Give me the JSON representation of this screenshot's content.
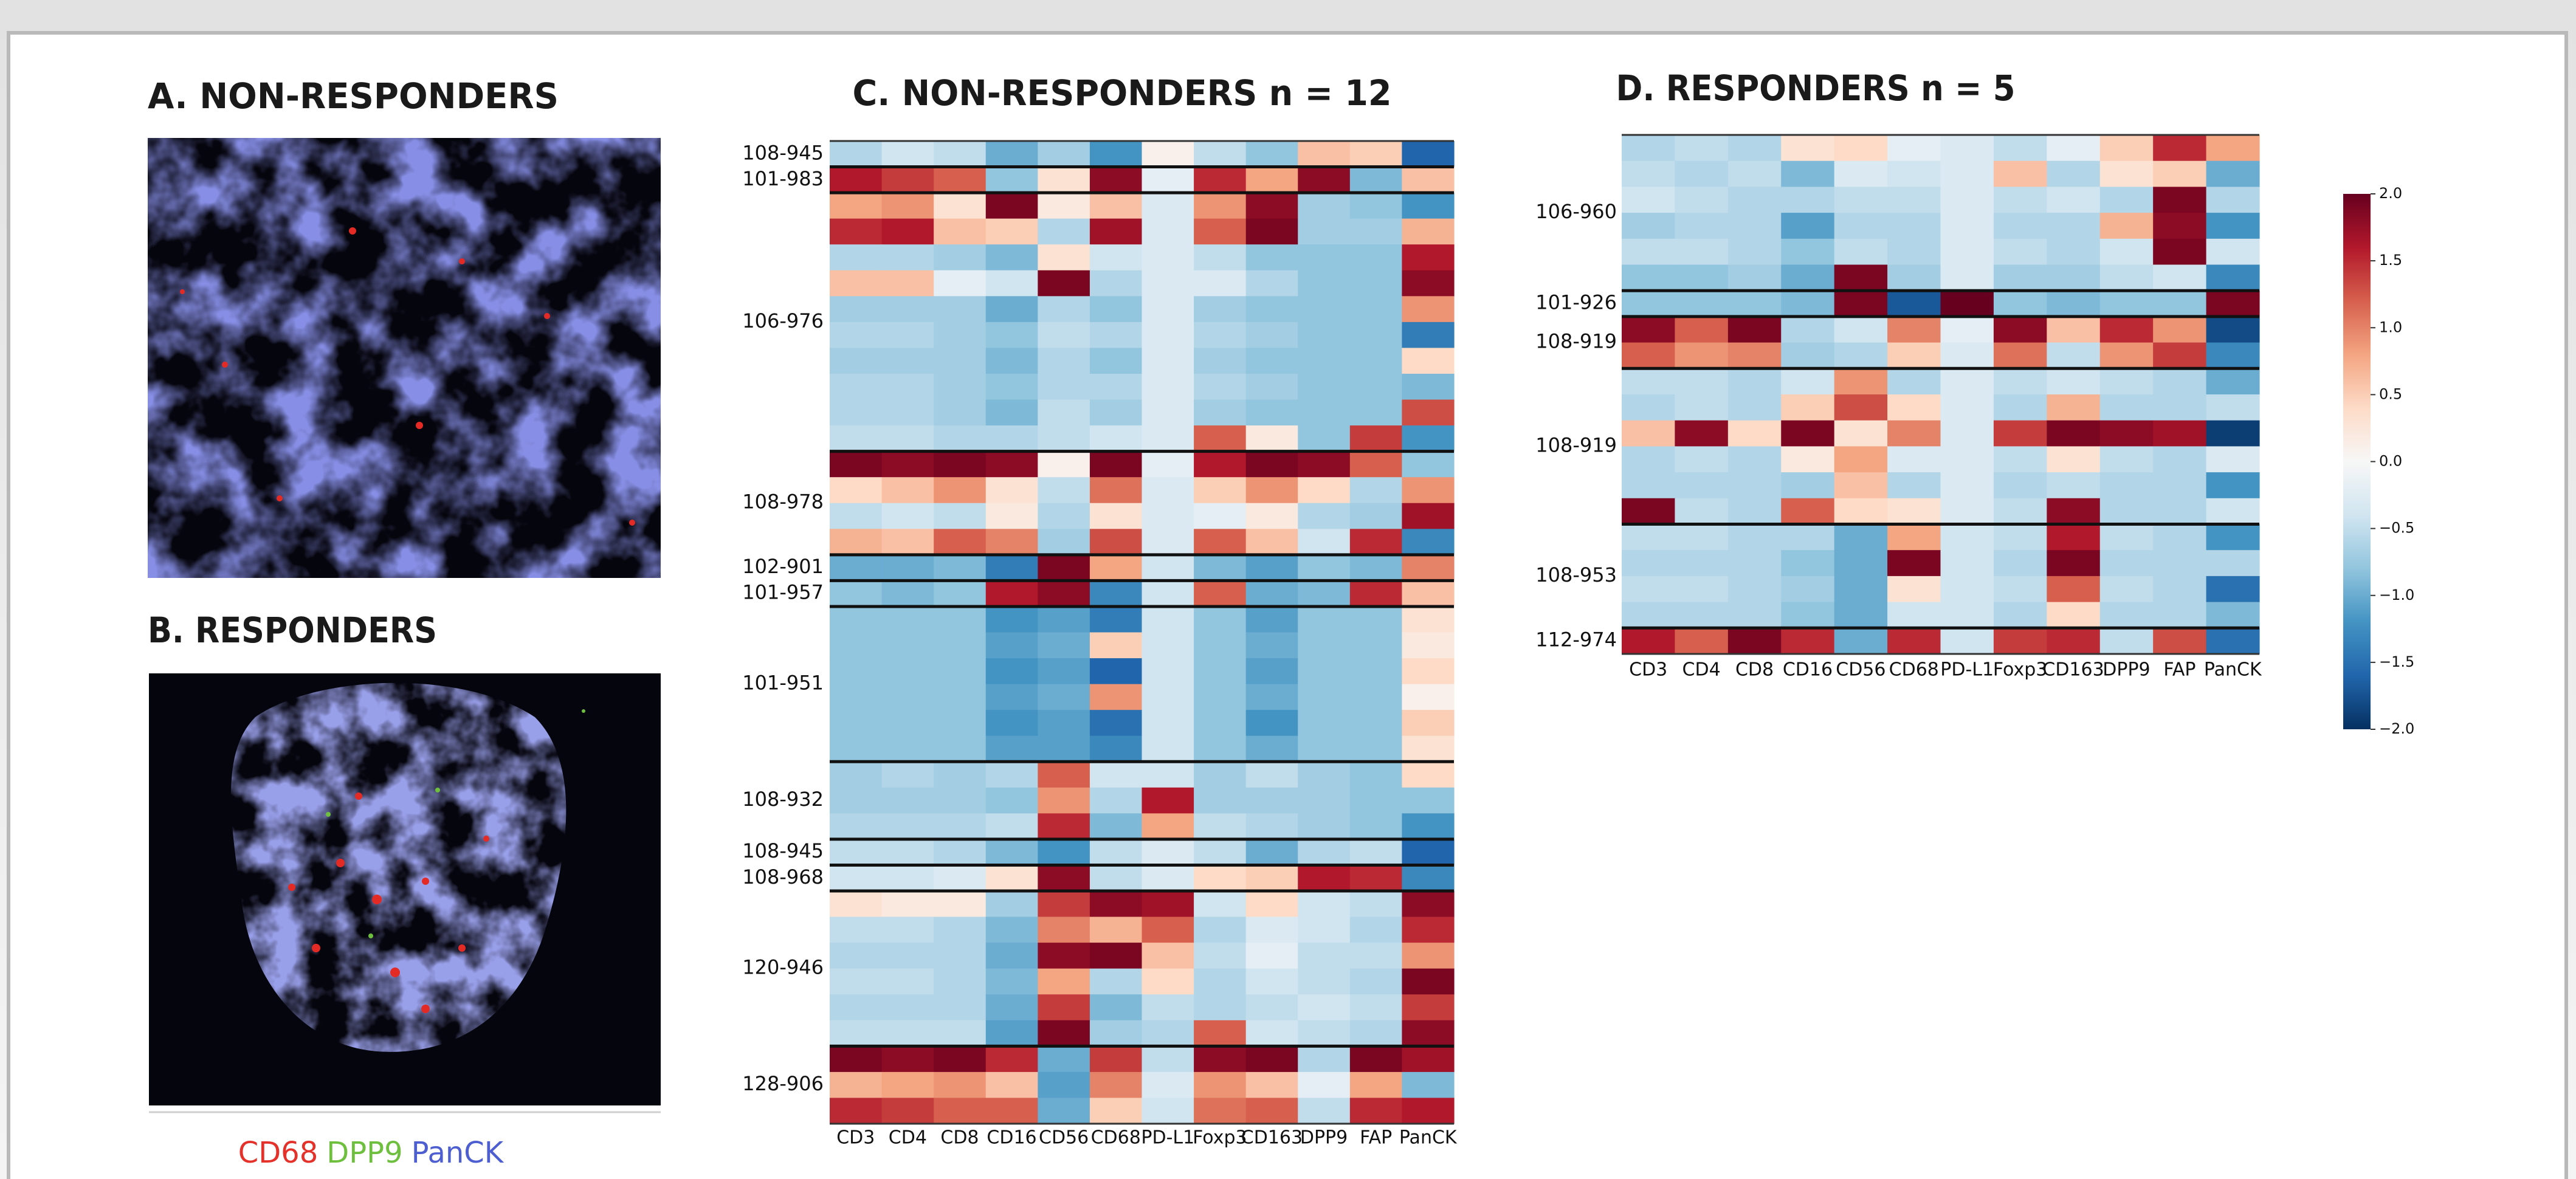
{
  "panels": {
    "a": {
      "title": "A. NON-RESPONDERS"
    },
    "b": {
      "title": "B. RESPONDERS"
    }
  },
  "stain_legend": [
    {
      "name": "CD68",
      "color": "#e4322b"
    },
    {
      "name": "DPP9",
      "color": "#6fbf3f"
    },
    {
      "name": "PanCK",
      "color": "#4d5fd0"
    }
  ],
  "colormap": [
    "#053061",
    "#2166ac",
    "#4393c3",
    "#92c5de",
    "#d1e5f0",
    "#f7f7f7",
    "#fddbc7",
    "#f4a582",
    "#d6604d",
    "#b2182b",
    "#67001f"
  ],
  "chart_data": [
    {
      "type": "heatmap",
      "title": "C. NON-RESPONDERS n = 12",
      "columns": [
        "CD3",
        "CD4",
        "CD8",
        "CD16",
        "CD56",
        "CD68",
        "PD-L1",
        "Foxp3",
        "CD163",
        "DPP9",
        "FAP",
        "PanCK"
      ],
      "zlim": [
        -2,
        2
      ],
      "groups": [
        {
          "label": "108-945",
          "rows": [
            [
              -0.6,
              -0.4,
              -0.5,
              -1.0,
              -0.7,
              -1.2,
              0.1,
              -0.5,
              -0.8,
              0.6,
              0.5,
              -1.6
            ]
          ]
        },
        {
          "label": "101-983",
          "rows": [
            [
              1.6,
              1.4,
              1.2,
              -0.8,
              0.3,
              1.8,
              -0.2,
              1.5,
              0.8,
              1.8,
              -0.9,
              0.6
            ]
          ]
        },
        {
          "label": "106-976",
          "rows": [
            [
              0.8,
              0.9,
              0.3,
              1.9,
              0.2,
              0.6,
              -0.3,
              0.9,
              1.8,
              -0.7,
              -0.8,
              -1.2
            ],
            [
              1.5,
              1.6,
              0.6,
              0.5,
              -0.6,
              1.7,
              -0.3,
              1.2,
              1.9,
              -0.7,
              -0.7,
              0.7
            ],
            [
              -0.6,
              -0.6,
              -0.7,
              -0.9,
              0.3,
              -0.4,
              -0.3,
              -0.5,
              -0.8,
              -0.8,
              -0.8,
              1.6
            ],
            [
              0.6,
              0.6,
              -0.2,
              -0.4,
              1.9,
              -0.6,
              -0.3,
              -0.3,
              -0.6,
              -0.8,
              -0.8,
              1.8
            ],
            [
              -0.7,
              -0.7,
              -0.7,
              -1.0,
              -0.6,
              -0.8,
              -0.3,
              -0.7,
              -0.8,
              -0.8,
              -0.8,
              0.9
            ],
            [
              -0.6,
              -0.6,
              -0.7,
              -0.8,
              -0.5,
              -0.6,
              -0.3,
              -0.6,
              -0.7,
              -0.8,
              -0.8,
              -1.4
            ],
            [
              -0.7,
              -0.7,
              -0.7,
              -0.9,
              -0.6,
              -0.8,
              -0.3,
              -0.7,
              -0.8,
              -0.8,
              -0.8,
              0.4
            ],
            [
              -0.6,
              -0.6,
              -0.7,
              -0.8,
              -0.6,
              -0.6,
              -0.3,
              -0.6,
              -0.7,
              -0.8,
              -0.8,
              -0.9
            ],
            [
              -0.6,
              -0.6,
              -0.7,
              -0.9,
              -0.5,
              -0.7,
              -0.3,
              -0.7,
              -0.8,
              -0.8,
              -0.8,
              1.3
            ],
            [
              -0.5,
              -0.5,
              -0.6,
              -0.6,
              -0.5,
              -0.4,
              -0.3,
              1.2,
              0.2,
              -0.8,
              1.4,
              -1.2
            ]
          ]
        },
        {
          "label": "108-978",
          "rows": [
            [
              1.9,
              1.8,
              1.9,
              1.8,
              0.1,
              1.9,
              -0.2,
              1.6,
              1.9,
              1.8,
              1.2,
              -0.8
            ],
            [
              0.4,
              0.6,
              0.9,
              0.3,
              -0.5,
              1.1,
              -0.3,
              0.5,
              0.9,
              0.4,
              -0.6,
              0.9
            ],
            [
              -0.5,
              -0.4,
              -0.5,
              0.2,
              -0.6,
              0.3,
              -0.3,
              -0.2,
              0.2,
              -0.6,
              -0.7,
              1.7
            ],
            [
              0.7,
              0.6,
              1.2,
              1.0,
              -0.7,
              1.3,
              -0.3,
              1.2,
              0.6,
              -0.4,
              1.5,
              -1.3
            ]
          ]
        },
        {
          "label": "102-901",
          "rows": [
            [
              -1.0,
              -1.0,
              -0.9,
              -1.4,
              1.9,
              0.8,
              -0.4,
              -0.9,
              -1.1,
              -0.8,
              -0.9,
              1.0
            ]
          ]
        },
        {
          "label": "101-957",
          "rows": [
            [
              -0.8,
              -0.9,
              -0.8,
              1.6,
              1.8,
              -1.3,
              -0.4,
              1.2,
              -1.0,
              -0.9,
              1.5,
              0.6
            ]
          ]
        },
        {
          "label": "101-951",
          "rows": [
            [
              -0.8,
              -0.8,
              -0.8,
              -1.2,
              -1.1,
              -1.4,
              -0.4,
              -0.8,
              -1.1,
              -0.8,
              -0.8,
              0.3
            ],
            [
              -0.8,
              -0.8,
              -0.8,
              -1.1,
              -1.0,
              0.5,
              -0.4,
              -0.8,
              -1.0,
              -0.8,
              -0.8,
              0.2
            ],
            [
              -0.8,
              -0.8,
              -0.8,
              -1.2,
              -1.1,
              -1.6,
              -0.4,
              -0.8,
              -1.1,
              -0.8,
              -0.8,
              0.4
            ],
            [
              -0.8,
              -0.8,
              -0.8,
              -1.1,
              -1.0,
              0.9,
              -0.4,
              -0.8,
              -1.0,
              -0.8,
              -0.8,
              0.1
            ],
            [
              -0.8,
              -0.8,
              -0.8,
              -1.2,
              -1.1,
              -1.5,
              -0.4,
              -0.8,
              -1.2,
              -0.8,
              -0.8,
              0.5
            ],
            [
              -0.8,
              -0.8,
              -0.8,
              -1.1,
              -1.1,
              -1.3,
              -0.4,
              -0.8,
              -1.0,
              -0.8,
              -0.8,
              0.3
            ]
          ]
        },
        {
          "label": "108-932",
          "rows": [
            [
              -0.7,
              -0.6,
              -0.7,
              -0.6,
              1.2,
              -0.4,
              -0.4,
              -0.7,
              -0.5,
              -0.7,
              -0.8,
              0.4
            ],
            [
              -0.7,
              -0.7,
              -0.7,
              -0.8,
              0.9,
              -0.6,
              1.6,
              -0.7,
              -0.7,
              -0.7,
              -0.8,
              -0.8
            ],
            [
              -0.6,
              -0.6,
              -0.6,
              -0.5,
              1.5,
              -0.9,
              0.8,
              -0.5,
              -0.6,
              -0.7,
              -0.8,
              -1.2
            ]
          ]
        },
        {
          "label": "108-945",
          "rows": [
            [
              -0.5,
              -0.5,
              -0.6,
              -0.9,
              -1.2,
              -0.5,
              -0.3,
              -0.5,
              -1.0,
              -0.6,
              -0.5,
              -1.6
            ]
          ]
        },
        {
          "label": "108-968",
          "rows": [
            [
              -0.4,
              -0.4,
              -0.3,
              0.3,
              1.8,
              -0.5,
              -0.3,
              0.4,
              0.5,
              1.6,
              1.5,
              -1.3
            ]
          ]
        },
        {
          "label": "120-946",
          "rows": [
            [
              0.3,
              0.2,
              0.2,
              -0.7,
              1.4,
              1.8,
              1.7,
              -0.4,
              0.4,
              -0.4,
              -0.5,
              1.8
            ],
            [
              -0.5,
              -0.5,
              -0.6,
              -0.9,
              1.0,
              0.7,
              1.2,
              -0.6,
              -0.3,
              -0.4,
              -0.6,
              1.5
            ],
            [
              -0.6,
              -0.6,
              -0.6,
              -1.0,
              1.8,
              1.9,
              0.6,
              -0.5,
              -0.2,
              -0.5,
              -0.5,
              0.9
            ],
            [
              -0.5,
              -0.5,
              -0.6,
              -0.9,
              0.8,
              -0.6,
              0.4,
              -0.6,
              -0.4,
              -0.5,
              -0.6,
              1.9
            ],
            [
              -0.6,
              -0.6,
              -0.6,
              -1.0,
              1.4,
              -0.9,
              -0.5,
              -0.6,
              -0.5,
              -0.4,
              -0.5,
              1.4
            ],
            [
              -0.5,
              -0.5,
              -0.5,
              -1.1,
              1.9,
              -0.7,
              -0.6,
              1.2,
              -0.4,
              -0.5,
              -0.6,
              1.8
            ]
          ]
        },
        {
          "label": "128-906",
          "rows": [
            [
              1.9,
              1.8,
              1.9,
              1.5,
              -1.0,
              1.4,
              -0.5,
              1.8,
              1.9,
              -0.6,
              1.9,
              1.7
            ],
            [
              0.7,
              0.8,
              0.9,
              0.6,
              -1.1,
              1.0,
              -0.3,
              0.9,
              0.6,
              -0.2,
              0.8,
              -0.9
            ],
            [
              1.5,
              1.4,
              1.2,
              1.2,
              -1.0,
              0.5,
              -0.4,
              1.1,
              1.2,
              -0.5,
              1.5,
              1.6
            ]
          ]
        }
      ]
    },
    {
      "type": "heatmap",
      "title": "D. RESPONDERS n = 5",
      "columns": [
        "CD3",
        "CD4",
        "CD8",
        "CD16",
        "CD56",
        "CD68",
        "PD-L1",
        "Foxp3",
        "CD163",
        "DPP9",
        "FAP",
        "PanCK"
      ],
      "zlim": [
        -2,
        2
      ],
      "zticks": [
        {
          "value": -2,
          "label": "−2.0"
        },
        {
          "value": -1.5,
          "label": "−1.5"
        },
        {
          "value": -1,
          "label": "−1.0"
        },
        {
          "value": -0.5,
          "label": "−0.5"
        },
        {
          "value": 0,
          "label": "0.0"
        },
        {
          "value": 0.5,
          "label": "0.5"
        },
        {
          "value": 1,
          "label": "1.0"
        },
        {
          "value": 1.5,
          "label": "1.5"
        },
        {
          "value": 2,
          "label": "2.0"
        }
      ],
      "groups": [
        {
          "label": "106-960",
          "rows": [
            [
              -0.6,
              -0.5,
              -0.6,
              0.3,
              0.4,
              -0.2,
              -0.3,
              -0.5,
              -0.2,
              0.5,
              1.5,
              0.8
            ],
            [
              -0.5,
              -0.6,
              -0.5,
              -0.9,
              -0.3,
              -0.4,
              -0.3,
              0.6,
              -0.6,
              0.3,
              0.5,
              -1.0
            ],
            [
              -0.4,
              -0.5,
              -0.6,
              -0.6,
              -0.5,
              -0.5,
              -0.3,
              -0.5,
              -0.4,
              -0.6,
              1.9,
              -0.6
            ],
            [
              -0.7,
              -0.6,
              -0.6,
              -1.1,
              -0.6,
              -0.6,
              -0.3,
              -0.6,
              -0.6,
              0.7,
              1.8,
              -1.2
            ],
            [
              -0.5,
              -0.5,
              -0.6,
              -0.8,
              -0.5,
              -0.6,
              -0.3,
              -0.5,
              -0.6,
              -0.4,
              1.9,
              -0.4
            ],
            [
              -0.8,
              -0.8,
              -0.7,
              -1.0,
              1.9,
              -0.7,
              -0.3,
              -0.7,
              -0.7,
              -0.5,
              -0.4,
              -1.3
            ]
          ]
        },
        {
          "label": "101-926",
          "rows": [
            [
              -0.8,
              -0.8,
              -0.8,
              -0.9,
              1.9,
              -1.7,
              2.0,
              -0.8,
              -0.9,
              -0.8,
              -0.8,
              1.9
            ]
          ]
        },
        {
          "label": "108-919",
          "rows": [
            [
              1.8,
              1.2,
              1.9,
              -0.6,
              -0.4,
              1.0,
              -0.2,
              1.8,
              0.6,
              1.5,
              0.9,
              -1.8
            ],
            [
              1.2,
              0.9,
              1.0,
              -0.7,
              -0.6,
              0.5,
              -0.3,
              1.1,
              -0.5,
              0.9,
              1.4,
              -1.3
            ]
          ]
        },
        {
          "label": "108-919",
          "rows": [
            [
              -0.5,
              -0.5,
              -0.6,
              -0.4,
              0.9,
              -0.6,
              -0.3,
              -0.5,
              -0.4,
              -0.5,
              -0.6,
              -1.0
            ],
            [
              -0.6,
              -0.5,
              -0.6,
              0.5,
              1.3,
              0.4,
              -0.3,
              -0.6,
              0.7,
              -0.6,
              -0.6,
              -0.5
            ],
            [
              0.6,
              1.8,
              0.4,
              1.9,
              0.3,
              1.0,
              -0.3,
              1.4,
              1.9,
              1.8,
              1.7,
              -1.9
            ],
            [
              -0.6,
              -0.5,
              -0.6,
              0.2,
              0.8,
              -0.3,
              -0.3,
              -0.5,
              0.3,
              -0.5,
              -0.6,
              -0.3
            ],
            [
              -0.6,
              -0.6,
              -0.6,
              -0.7,
              0.6,
              -0.6,
              -0.3,
              -0.6,
              -0.5,
              -0.6,
              -0.6,
              -1.2
            ],
            [
              1.9,
              -0.5,
              -0.6,
              1.2,
              0.4,
              0.3,
              -0.3,
              -0.5,
              1.8,
              -0.6,
              -0.6,
              -0.4
            ]
          ]
        },
        {
          "label": "108-953",
          "rows": [
            [
              -0.5,
              -0.5,
              -0.6,
              -0.6,
              -1.0,
              0.8,
              -0.4,
              -0.5,
              1.6,
              -0.5,
              -0.6,
              -1.2
            ],
            [
              -0.6,
              -0.6,
              -0.6,
              -0.8,
              -1.0,
              1.9,
              -0.4,
              -0.6,
              1.9,
              -0.6,
              -0.6,
              -0.6
            ],
            [
              -0.5,
              -0.5,
              -0.6,
              -0.7,
              -1.0,
              0.3,
              -0.4,
              -0.5,
              1.2,
              -0.5,
              -0.6,
              -1.5
            ],
            [
              -0.6,
              -0.6,
              -0.6,
              -0.8,
              -1.0,
              -0.4,
              -0.4,
              -0.6,
              0.4,
              -0.6,
              -0.6,
              -0.9
            ]
          ]
        },
        {
          "label": "112-974",
          "rows": [
            [
              1.6,
              1.2,
              1.9,
              1.5,
              -1.0,
              1.5,
              -0.4,
              1.4,
              1.5,
              -0.5,
              1.3,
              -1.5
            ]
          ]
        }
      ]
    }
  ]
}
